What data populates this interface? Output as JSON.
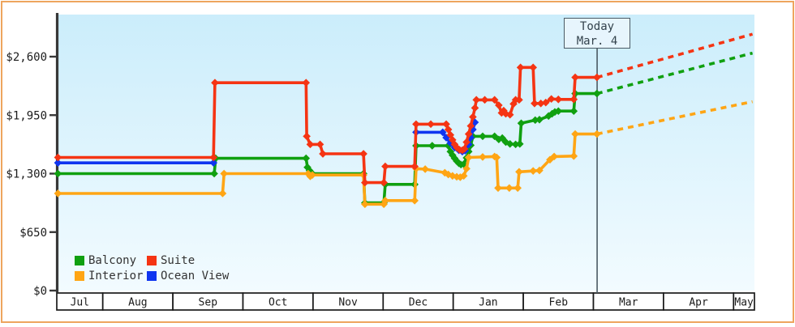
{
  "page": {
    "frame_color": "#eea55e",
    "background": "#ffffff"
  },
  "chart": {
    "plot": {
      "bg_top": "#cbedfb",
      "bg_bottom": "#f2fbff",
      "axis_color": "#383838",
      "month_box_border": "#1a1a1a",
      "today_line_color": "#4b5a64"
    },
    "legend": {
      "items": [
        {
          "label": "Balcony",
          "series": 0
        },
        {
          "label": "Suite",
          "series": 1
        },
        {
          "label": "Interior",
          "series": 2
        },
        {
          "label": "Ocean View",
          "series": 3
        }
      ]
    }
  },
  "chart_data": {
    "type": "line",
    "title": "",
    "description": "Cabin price history by category (stepped daily prices) with dashed forecast after today",
    "x_axis": {
      "months": [
        "Jul",
        "Aug",
        "Sep",
        "Oct",
        "Nov",
        "Dec",
        "Jan",
        "Feb",
        "Mar",
        "Apr",
        "May"
      ],
      "unit": "t = months since Jul 1 (fractional)"
    },
    "y_axis": {
      "currency": "USD",
      "ticks": [
        {
          "label": "$0",
          "value": 0
        },
        {
          "label": "$650",
          "value": 650
        },
        {
          "label": "$1,300",
          "value": 1300
        },
        {
          "label": "$1,950",
          "value": 1950
        },
        {
          "label": "$2,600",
          "value": 2600
        }
      ],
      "ylim": [
        0,
        3070
      ]
    },
    "today": {
      "label": "Today",
      "date": "Mar. 4",
      "t": 8.053
    },
    "forecast_end_t": 10.27,
    "series": [
      {
        "name": "Balcony",
        "color": "#10a010",
        "segments": [
          [
            [
              0.36,
              1300
            ],
            [
              2.59,
              1300
            ],
            [
              2.61,
              1470
            ],
            [
              3.9,
              1470
            ],
            [
              3.92,
              1370
            ],
            [
              3.95,
              1335
            ],
            [
              3.99,
              1300
            ],
            [
              4.72,
              1300
            ],
            [
              4.74,
              975
            ],
            [
              5.01,
              975
            ],
            [
              5.03,
              1180
            ],
            [
              5.45,
              1180
            ],
            [
              5.47,
              1610
            ],
            [
              5.7,
              1610
            ],
            [
              5.93,
              1610
            ],
            [
              5.96,
              1545
            ],
            [
              5.99,
              1505
            ],
            [
              6.02,
              1470
            ],
            [
              6.05,
              1440
            ],
            [
              6.08,
              1415
            ],
            [
              6.11,
              1400
            ],
            [
              6.15,
              1405
            ],
            [
              6.19,
              1475
            ],
            [
              6.22,
              1545
            ],
            [
              6.25,
              1615
            ],
            [
              6.28,
              1715
            ],
            [
              6.42,
              1715
            ],
            [
              6.59,
              1715
            ],
            [
              6.65,
              1680
            ],
            [
              6.7,
              1695
            ],
            [
              6.75,
              1650
            ],
            [
              6.81,
              1630
            ],
            [
              6.89,
              1625
            ],
            [
              6.95,
              1630
            ],
            [
              6.97,
              1860
            ],
            [
              7.17,
              1895
            ],
            [
              7.23,
              1900
            ],
            [
              7.36,
              1940
            ],
            [
              7.41,
              1965
            ],
            [
              7.45,
              1985
            ],
            [
              7.5,
              1995
            ],
            [
              7.72,
              1995
            ],
            [
              7.74,
              2190
            ],
            [
              8.05,
              2190
            ]
          ]
        ],
        "projection": [
          [
            8.05,
            2190
          ],
          [
            10.27,
            2640
          ]
        ]
      },
      {
        "name": "Suite",
        "color": "#f53413",
        "segments": [
          [
            [
              0.36,
              1480
            ],
            [
              2.58,
              1480
            ],
            [
              2.6,
              2310
            ],
            [
              3.9,
              2310
            ],
            [
              3.91,
              1715
            ],
            [
              3.96,
              1625
            ],
            [
              4.1,
              1625
            ],
            [
              4.14,
              1520
            ],
            [
              4.72,
              1520
            ],
            [
              4.74,
              1200
            ],
            [
              5.01,
              1200
            ],
            [
              5.03,
              1380
            ],
            [
              5.45,
              1380
            ],
            [
              5.47,
              1850
            ],
            [
              5.68,
              1850
            ],
            [
              5.9,
              1850
            ],
            [
              5.93,
              1790
            ],
            [
              5.96,
              1730
            ],
            [
              5.99,
              1675
            ],
            [
              6.02,
              1625
            ],
            [
              6.05,
              1590
            ],
            [
              6.09,
              1565
            ],
            [
              6.13,
              1560
            ],
            [
              6.16,
              1575
            ],
            [
              6.19,
              1650
            ],
            [
              6.22,
              1740
            ],
            [
              6.25,
              1830
            ],
            [
              6.28,
              1930
            ],
            [
              6.31,
              2030
            ],
            [
              6.33,
              2120
            ],
            [
              6.45,
              2120
            ],
            [
              6.59,
              2120
            ],
            [
              6.65,
              2060
            ],
            [
              6.69,
              1975
            ],
            [
              6.72,
              2000
            ],
            [
              6.75,
              1965
            ],
            [
              6.81,
              1955
            ],
            [
              6.86,
              2075
            ],
            [
              6.89,
              2120
            ],
            [
              6.94,
              2120
            ],
            [
              6.96,
              2480
            ],
            [
              7.14,
              2480
            ],
            [
              7.16,
              2080
            ],
            [
              7.25,
              2080
            ],
            [
              7.32,
              2090
            ],
            [
              7.4,
              2130
            ],
            [
              7.5,
              2125
            ],
            [
              7.72,
              2125
            ],
            [
              7.74,
              2370
            ],
            [
              8.05,
              2370
            ]
          ]
        ],
        "projection": [
          [
            8.05,
            2370
          ],
          [
            10.27,
            2850
          ]
        ]
      },
      {
        "name": "Interior",
        "color": "#ffa514",
        "segments": [
          [
            [
              0.36,
              1080
            ],
            [
              2.71,
              1080
            ],
            [
              2.73,
              1300
            ],
            [
              3.93,
              1300
            ],
            [
              3.96,
              1270
            ],
            [
              3.99,
              1285
            ],
            [
              4.72,
              1285
            ],
            [
              4.74,
              960
            ],
            [
              5.01,
              960
            ],
            [
              5.03,
              1000
            ],
            [
              5.45,
              1000
            ],
            [
              5.47,
              1355
            ],
            [
              5.6,
              1350
            ],
            [
              5.88,
              1310
            ],
            [
              5.93,
              1290
            ],
            [
              5.99,
              1275
            ],
            [
              6.05,
              1265
            ],
            [
              6.1,
              1260
            ],
            [
              6.15,
              1275
            ],
            [
              6.19,
              1355
            ],
            [
              6.22,
              1480
            ],
            [
              6.42,
              1485
            ],
            [
              6.59,
              1490
            ],
            [
              6.62,
              1480
            ],
            [
              6.64,
              1140
            ],
            [
              6.8,
              1140
            ],
            [
              6.92,
              1140
            ],
            [
              6.94,
              1320
            ],
            [
              7.14,
              1330
            ],
            [
              7.23,
              1335
            ],
            [
              7.38,
              1455
            ],
            [
              7.44,
              1490
            ],
            [
              7.72,
              1495
            ],
            [
              7.74,
              1740
            ],
            [
              8.05,
              1740
            ]
          ]
        ],
        "projection": [
          [
            8.05,
            1740
          ],
          [
            10.27,
            2100
          ]
        ]
      },
      {
        "name": "Ocean View",
        "color": "#0f35f0",
        "segments": [
          [
            [
              0.36,
              1420
            ],
            [
              2.58,
              1420
            ]
          ],
          [
            [
              5.47,
              1760
            ],
            [
              5.85,
              1760
            ],
            [
              5.9,
              1700
            ],
            [
              5.96,
              1640
            ],
            [
              6.02,
              1590
            ],
            [
              6.08,
              1560
            ],
            [
              6.13,
              1545
            ],
            [
              6.17,
              1555
            ],
            [
              6.22,
              1625
            ],
            [
              6.25,
              1700
            ],
            [
              6.28,
              1790
            ],
            [
              6.31,
              1870
            ]
          ]
        ],
        "projection": null
      }
    ]
  }
}
